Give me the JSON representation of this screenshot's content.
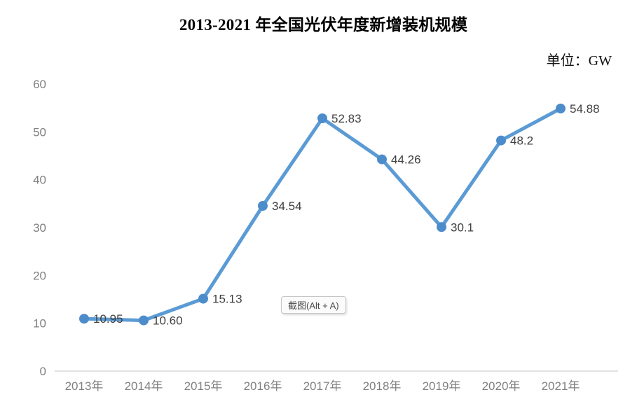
{
  "title": "2013-2021 年全国光伏年度新增装机规模",
  "unit_label": "单位：GW",
  "overlay_tooltip": "截图(Alt + A)",
  "chart_data": {
    "type": "line",
    "title": "2013-2021 年全国光伏年度新增装机规模",
    "unit": "GW",
    "categories": [
      "2013年",
      "2014年",
      "2015年",
      "2016年",
      "2017年",
      "2018年",
      "2019年",
      "2020年",
      "2021年"
    ],
    "values": [
      10.95,
      10.6,
      15.13,
      34.54,
      52.83,
      44.26,
      30.1,
      48.2,
      54.88
    ],
    "data_labels": [
      "10.95",
      "10.60",
      "15.13",
      "34.54",
      "52.83",
      "44.26",
      "30.1",
      "48.2",
      "54.88"
    ],
    "xlabel": "",
    "ylabel": "",
    "ylim": [
      0,
      60
    ],
    "yticks": [
      0,
      10,
      20,
      30,
      40,
      50,
      60
    ],
    "grid": false,
    "legend": "none",
    "line_color": "#5B9BD5",
    "marker_color": "#4d8cca",
    "axis_color": "#d9d9d9",
    "tick_label_color": "#808080",
    "data_label_color": "#3f3f3f"
  }
}
